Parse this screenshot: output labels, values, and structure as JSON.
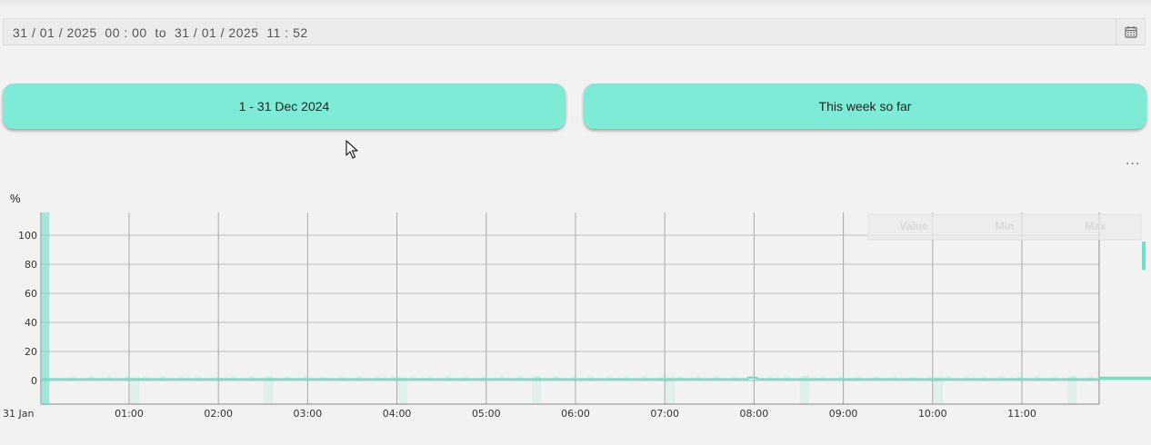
{
  "date_range": {
    "value": "31 / 01 / 2025  00 : 00  to  31 / 01 / 2025  11 : 52"
  },
  "presets": [
    {
      "label": "1 - 31 Dec 2024"
    },
    {
      "label": "This week so far"
    }
  ],
  "menu": {
    "label": "..."
  },
  "chart_data": {
    "type": "line",
    "ylabel": "%",
    "ylim": [
      -16,
      116
    ],
    "y_ticks": [
      0,
      20,
      40,
      60,
      80,
      100
    ],
    "x_tick_labels": [
      "31 Jan",
      "01:00",
      "02:00",
      "03:00",
      "04:00",
      "05:00",
      "06:00",
      "07:00",
      "08:00",
      "09:00",
      "10:00",
      "11:00"
    ],
    "legend_headers": [
      "Value",
      "Min",
      "Max"
    ],
    "accent_color": "#6de0c8",
    "series": [
      {
        "values": [
          1,
          1,
          1,
          1,
          1,
          1,
          1,
          1,
          1,
          1,
          1,
          1,
          1,
          1,
          1,
          1,
          1,
          1,
          1,
          1,
          1,
          1,
          1,
          1,
          1,
          1,
          1,
          1,
          1,
          1,
          1,
          1,
          1,
          1,
          1,
          1,
          1,
          1,
          1,
          1,
          1,
          1,
          1,
          1,
          1,
          1,
          1,
          1,
          1,
          1,
          1,
          1,
          1,
          1,
          1,
          1,
          1,
          1,
          1,
          1,
          1,
          1,
          1,
          1,
          1,
          1,
          1,
          1,
          1,
          1,
          1,
          1,
          1,
          1,
          1,
          1,
          1,
          1,
          1,
          1,
          1,
          1,
          1,
          1,
          1,
          1,
          1,
          1,
          1,
          1,
          1,
          1,
          1,
          1,
          1,
          1,
          1,
          1,
          1,
          1,
          1,
          1,
          1,
          1,
          1,
          1,
          1,
          1,
          1,
          1,
          1,
          1,
          1,
          1,
          1,
          1,
          1,
          1,
          1,
          1,
          1,
          1,
          1,
          1,
          1,
          1,
          1,
          1,
          1,
          1,
          1,
          1,
          1,
          1,
          1,
          1,
          1,
          1,
          1,
          1,
          1,
          1,
          1,
          1,
          1,
          1,
          1,
          1,
          1,
          1,
          1,
          1,
          1,
          1,
          1,
          1,
          1,
          1,
          1,
          1,
          1,
          1,
          1,
          1,
          1,
          1,
          1,
          1,
          1,
          1,
          1,
          1,
          1,
          1,
          1,
          1,
          1,
          1,
          1,
          1,
          1,
          1,
          1,
          1,
          1,
          1,
          1,
          1,
          1,
          1,
          1,
          1,
          1,
          1,
          1,
          1,
          1,
          1,
          1,
          1,
          1,
          1,
          1,
          1,
          1,
          1,
          1,
          1,
          1,
          1,
          1,
          1,
          1,
          1,
          1,
          1,
          1,
          1,
          1,
          1,
          1,
          1,
          1,
          1,
          1,
          1,
          1,
          1,
          1,
          1,
          1,
          1,
          1,
          1,
          1,
          1,
          1,
          1,
          1,
          1,
          1,
          1,
          1,
          1,
          1,
          1,
          1,
          1,
          1,
          1,
          1,
          1,
          1,
          1,
          1,
          1,
          1,
          1,
          1,
          1,
          1,
          1,
          1,
          1,
          1,
          1,
          1,
          1,
          1,
          1,
          1,
          1,
          1,
          1,
          1,
          1,
          1,
          1,
          1,
          1,
          1,
          1,
          1,
          1,
          1,
          1,
          1,
          1,
          1,
          1,
          1,
          1,
          1,
          1,
          1,
          1,
          1,
          1,
          1,
          1,
          1,
          1,
          1,
          1,
          1,
          1,
          1,
          1,
          1,
          1,
          1,
          1,
          1,
          1,
          1,
          1,
          1,
          1,
          1,
          1,
          1,
          1,
          1,
          1,
          1,
          1,
          1,
          1,
          1,
          1,
          1,
          1,
          1,
          1,
          1,
          1,
          1,
          1,
          1,
          1,
          1,
          1,
          1,
          1,
          1,
          1,
          1,
          1,
          1,
          1,
          1,
          1,
          1,
          1,
          1,
          1,
          1,
          1,
          1,
          1,
          1,
          1,
          1,
          1,
          1,
          1,
          1,
          1,
          1,
          1,
          1,
          1,
          1,
          1,
          1,
          1,
          1,
          1,
          1,
          1,
          1,
          1,
          1,
          1,
          1,
          1,
          1,
          1,
          1,
          1,
          1,
          1,
          1,
          1,
          1,
          1,
          1,
          1,
          1,
          1,
          1,
          1,
          1,
          1,
          1,
          1,
          1,
          1,
          1,
          1,
          1,
          1,
          1,
          1,
          1,
          1,
          1,
          1,
          1,
          1,
          1,
          1,
          1,
          1,
          1,
          1,
          1,
          1,
          1,
          1,
          1,
          1,
          1,
          1,
          1,
          1,
          1,
          1,
          1,
          1,
          1,
          1,
          1,
          1,
          1,
          1,
          1,
          1,
          1,
          1,
          1,
          1,
          1,
          1,
          1,
          1,
          1,
          1,
          1,
          1,
          1,
          1,
          1,
          1,
          1,
          1,
          1,
          1,
          1,
          1,
          1,
          1,
          1,
          1,
          1,
          1,
          1,
          1,
          1,
          1,
          1,
          1,
          1,
          1,
          1,
          1,
          1,
          1,
          1,
          1,
          1,
          1,
          1,
          1,
          1,
          1,
          1,
          1,
          1,
          1,
          1,
          1,
          1,
          1,
          1,
          1,
          1,
          1,
          1,
          1,
          1,
          1,
          1,
          1,
          1,
          1,
          1,
          1,
          1,
          1,
          1,
          1,
          1,
          1,
          1,
          1,
          1,
          1,
          1,
          1,
          1,
          1,
          1,
          1,
          1,
          1,
          1,
          1,
          1,
          1,
          1,
          1,
          1,
          1,
          1,
          1,
          1,
          1,
          1,
          1,
          1,
          1,
          1,
          1,
          1,
          1,
          1,
          1,
          1,
          1,
          1,
          1,
          1,
          1,
          1,
          1,
          1,
          1,
          1,
          1,
          1,
          1,
          1,
          1,
          1,
          1,
          1,
          1,
          1,
          1,
          1,
          1,
          1,
          1,
          1,
          1,
          1,
          1,
          1,
          1,
          1,
          1,
          1,
          1,
          1,
          1,
          1,
          1,
          1,
          1,
          1,
          1,
          1,
          1,
          1,
          1,
          1,
          1,
          1,
          1,
          1,
          1,
          1,
          1,
          1,
          1,
          1,
          1,
          1,
          1,
          1,
          1,
          1,
          1,
          1,
          1,
          1,
          1,
          1,
          1,
          1,
          1,
          1,
          1,
          1,
          1,
          1,
          1,
          1,
          1,
          1,
          1,
          1,
          1,
          1,
          1,
          1,
          1,
          1,
          1,
          1,
          1,
          1,
          1,
          1,
          1,
          1,
          1,
          1,
          1,
          1,
          1,
          1,
          1,
          1,
          1,
          1,
          1,
          1,
          1,
          1,
          1,
          1,
          1,
          1,
          1,
          1,
          1,
          1,
          1,
          1,
          1,
          1,
          1,
          1,
          1,
          1,
          1,
          1,
          1,
          1,
          1,
          1,
          1,
          1,
          1,
          1,
          1,
          1,
          1,
          1,
          1,
          1,
          1,
          1,
          1,
          1,
          1,
          1,
          1,
          1,
          1,
          1,
          1,
          1,
          1,
          1,
          1,
          1,
          1,
          1,
          1,
          1,
          1,
          1,
          1,
          1,
          1,
          1,
          1,
          1,
          1,
          1,
          1,
          1,
          1,
          1,
          1,
          1,
          1,
          1,
          1,
          1,
          1,
          1,
          1,
          1,
          1,
          1,
          1,
          1,
          1,
          1,
          1,
          1,
          1,
          1,
          1,
          1
        ]
      }
    ],
    "steps": [
      [
        0,
        1
      ],
      [
        470,
        1
      ],
      [
        475,
        2
      ],
      [
        481,
        1
      ],
      [
        810,
        1
      ],
      [
        812,
        4
      ],
      [
        818,
        1
      ],
      [
        835,
        1
      ],
      [
        842,
        2
      ],
      [
        856,
        1
      ],
      [
        884,
        1
      ],
      [
        885,
        2
      ],
      [
        889,
        1
      ],
      [
        893,
        1
      ],
      [
        894,
        16
      ],
      [
        900,
        27
      ],
      [
        907,
        2
      ],
      [
        925,
        1
      ],
      [
        940,
        1
      ],
      [
        943,
        16
      ],
      [
        950,
        22
      ],
      [
        956,
        3
      ],
      [
        970,
        1
      ],
      [
        990,
        1
      ],
      [
        1000,
        1
      ],
      [
        1005,
        4
      ],
      [
        1016,
        42
      ],
      [
        1024,
        41
      ],
      [
        1030,
        3
      ],
      [
        1040,
        1
      ],
      [
        1053,
        2
      ]
    ],
    "steps_x_unit": "minutes since 00:00",
    "max_band": [
      [
        0,
        6,
        116
      ],
      [
        60,
        6,
        3
      ],
      [
        150,
        6,
        3
      ],
      [
        240,
        6,
        3
      ],
      [
        330,
        6,
        3
      ],
      [
        420,
        6,
        3
      ],
      [
        510,
        6,
        3
      ],
      [
        600,
        6,
        3
      ],
      [
        690,
        6,
        3
      ],
      [
        780,
        6,
        3
      ],
      [
        850,
        6,
        3
      ],
      [
        865,
        6,
        15
      ],
      [
        870,
        10,
        100
      ],
      [
        965,
        10,
        100
      ],
      [
        1060,
        10,
        100
      ],
      [
        1000,
        6,
        10
      ],
      [
        1010,
        6,
        46
      ]
    ]
  }
}
